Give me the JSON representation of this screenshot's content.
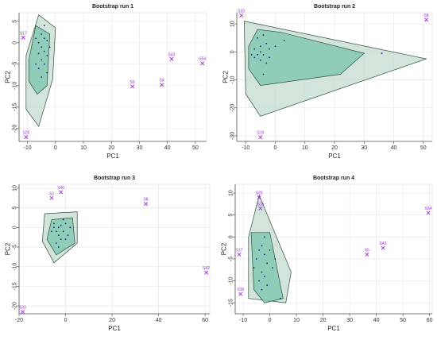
{
  "colors": {
    "outlier": "#9b30d9",
    "outer_fill": "#c4dccf",
    "inner_fill": "#7fc7b0",
    "hull_stroke": "#2f4f3f",
    "point": "#1a237e",
    "grid": "#e8e8e8",
    "axis": "#555555"
  },
  "chart_data": [
    {
      "type": "scatter",
      "title": "Bootstrap run 1",
      "xlabel": "PC1",
      "ylabel": "PC2",
      "xlim": [
        -13,
        54
      ],
      "ylim": [
        -23,
        7
      ],
      "xticks": [
        -10,
        0,
        10,
        20,
        30,
        40,
        50
      ],
      "yticks": [
        5,
        0,
        -5,
        -10,
        -15,
        -20
      ],
      "grid": true,
      "outliers": [
        {
          "label": "S17",
          "x": -11.5,
          "y": 1.2
        },
        {
          "label": "S43",
          "x": 41.5,
          "y": -3.8
        },
        {
          "label": "S54",
          "x": 52.5,
          "y": -4.8
        },
        {
          "label": "S9",
          "x": 27.5,
          "y": -10.2
        },
        {
          "label": "S4",
          "x": 38,
          "y": -9.8
        },
        {
          "label": "S25",
          "x": -10.5,
          "y": -22
        }
      ],
      "outer_hull": [
        [
          -6,
          6.5
        ],
        [
          0,
          3.5
        ],
        [
          -1,
          -8.5
        ],
        [
          -6,
          -19.5
        ],
        [
          -10.5,
          -15.5
        ],
        [
          -10.5,
          -3
        ]
      ],
      "inner_hull": [
        [
          -7,
          4
        ],
        [
          -2,
          2
        ],
        [
          -3,
          -10
        ],
        [
          -6.5,
          -12
        ],
        [
          -9.5,
          -9
        ],
        [
          -9.5,
          -4
        ]
      ],
      "points": [
        [
          -5,
          2
        ],
        [
          -4,
          1
        ],
        [
          -6,
          0
        ],
        [
          -3,
          0.5
        ],
        [
          -5,
          -1
        ],
        [
          -4,
          -2
        ],
        [
          -6,
          -2.5
        ],
        [
          -3,
          -3
        ],
        [
          -5,
          -4
        ],
        [
          -4,
          -5
        ],
        [
          -7,
          -5
        ],
        [
          -6,
          -6
        ],
        [
          -3,
          -7
        ],
        [
          -5,
          -8
        ],
        [
          -4,
          4
        ],
        [
          -2,
          -1
        ],
        [
          -7,
          1
        ]
      ]
    },
    {
      "type": "scatter",
      "title": "Bootstrap run 2",
      "xlabel": "PC1",
      "ylabel": "PC2",
      "xlim": [
        -13,
        53
      ],
      "ylim": [
        -32,
        14
      ],
      "xticks": [
        -10,
        0,
        10,
        20,
        30,
        40,
        50
      ],
      "yticks": [
        10,
        0,
        -10,
        -20,
        -30
      ],
      "grid": true,
      "outliers": [
        {
          "label": "S33",
          "x": -11.5,
          "y": 13
        },
        {
          "label": "S8",
          "x": 51,
          "y": 11.5
        },
        {
          "label": "S19",
          "x": -5,
          "y": -30.5
        }
      ],
      "outer_hull": [
        [
          -10.5,
          11
        ],
        [
          51,
          -2.5
        ],
        [
          -5,
          -23
        ],
        [
          -10,
          -15
        ]
      ],
      "inner_hull": [
        [
          -6,
          8
        ],
        [
          2,
          7
        ],
        [
          30,
          -0.5
        ],
        [
          22,
          -8
        ],
        [
          -5,
          -12
        ],
        [
          -9,
          -6
        ],
        [
          -9,
          2
        ]
      ],
      "points": [
        [
          -6,
          5
        ],
        [
          -5,
          2
        ],
        [
          -4,
          -1
        ],
        [
          -7,
          -2
        ],
        [
          -3,
          3
        ],
        [
          -5,
          -3
        ],
        [
          -2,
          1
        ],
        [
          -6,
          -1
        ],
        [
          -4,
          6
        ],
        [
          0,
          2
        ],
        [
          -3,
          -4
        ],
        [
          -5,
          0
        ],
        [
          -8,
          -1
        ],
        [
          -2,
          -2
        ],
        [
          3,
          4
        ],
        [
          36,
          -0.5
        ],
        [
          -4,
          -8
        ],
        [
          -7,
          1
        ]
      ]
    },
    {
      "type": "scatter",
      "title": "Bootstrap run 3",
      "xlabel": "PC1",
      "ylabel": "PC2",
      "xlim": [
        -20,
        62
      ],
      "ylim": [
        -22,
        11
      ],
      "xticks": [
        -20,
        0,
        20,
        40,
        60
      ],
      "yticks": [
        10,
        5,
        0,
        -5,
        -10,
        -15,
        -20
      ],
      "grid": true,
      "outliers": [
        {
          "label": "S40",
          "x": -2,
          "y": 9
        },
        {
          "label": "S3",
          "x": -6,
          "y": 7.5
        },
        {
          "label": "S8",
          "x": 34.5,
          "y": 6
        },
        {
          "label": "S42",
          "x": 60.5,
          "y": -11.5
        },
        {
          "label": "S33",
          "x": -18.5,
          "y": -21.5
        }
      ],
      "outer_hull": [
        [
          -9,
          3.5
        ],
        [
          5,
          4
        ],
        [
          5,
          -4
        ],
        [
          -5,
          -9
        ],
        [
          -10,
          -3.5
        ]
      ],
      "inner_hull": [
        [
          -6,
          2
        ],
        [
          3,
          2.5
        ],
        [
          4,
          -4
        ],
        [
          -4,
          -7
        ],
        [
          -8,
          -3
        ]
      ],
      "points": [
        [
          -5,
          0
        ],
        [
          -4,
          -1
        ],
        [
          -2,
          0.5
        ],
        [
          -3,
          -2
        ],
        [
          -1,
          -1
        ],
        [
          0,
          1
        ],
        [
          -2,
          -3
        ],
        [
          -4,
          -4
        ],
        [
          -3,
          0
        ],
        [
          1,
          -2
        ],
        [
          -6,
          -1
        ],
        [
          -1,
          2
        ],
        [
          2,
          0
        ],
        [
          -3,
          -5
        ],
        [
          0,
          -3
        ],
        [
          -5,
          1
        ]
      ]
    },
    {
      "type": "scatter",
      "title": "Bootstrap run 4",
      "xlabel": "PC1",
      "ylabel": "PC2",
      "xlim": [
        -13,
        61
      ],
      "ylim": [
        -17.5,
        12
      ],
      "xticks": [
        -10,
        0,
        10,
        20,
        30,
        40,
        50,
        60
      ],
      "yticks": [
        10,
        5,
        0,
        -5,
        -10,
        -15
      ],
      "grid": true,
      "outliers": [
        {
          "label": "S25",
          "x": -4,
          "y": 9
        },
        {
          "label": "S15",
          "x": -3.5,
          "y": 6.5
        },
        {
          "label": "S54",
          "x": 59.5,
          "y": 5.5
        },
        {
          "label": "S42",
          "x": 42.5,
          "y": -2.5
        },
        {
          "label": "S17",
          "x": -11.5,
          "y": -4
        },
        {
          "label": "S5",
          "x": 36.5,
          "y": -4
        },
        {
          "label": "S35",
          "x": -11,
          "y": -13
        }
      ],
      "outer_hull": [
        [
          -4,
          9.5
        ],
        [
          8,
          -8
        ],
        [
          6,
          -15
        ],
        [
          -8,
          -14
        ],
        [
          -8,
          0
        ]
      ],
      "inner_hull": [
        [
          -7,
          1
        ],
        [
          0,
          1
        ],
        [
          5,
          -14
        ],
        [
          -2,
          -15
        ],
        [
          -6,
          -12
        ]
      ],
      "points": [
        [
          -3,
          -2
        ],
        [
          -2,
          -4
        ],
        [
          -4,
          -3
        ],
        [
          -1,
          -6
        ],
        [
          -3,
          -8
        ],
        [
          -5,
          -5
        ],
        [
          0,
          -3
        ],
        [
          -2,
          -9
        ],
        [
          -4,
          -10
        ],
        [
          1,
          -7
        ],
        [
          -3,
          -12
        ],
        [
          -1,
          -11
        ],
        [
          2,
          -5
        ],
        [
          4,
          -14
        ],
        [
          -6,
          -7
        ],
        [
          -2,
          0
        ]
      ]
    }
  ]
}
